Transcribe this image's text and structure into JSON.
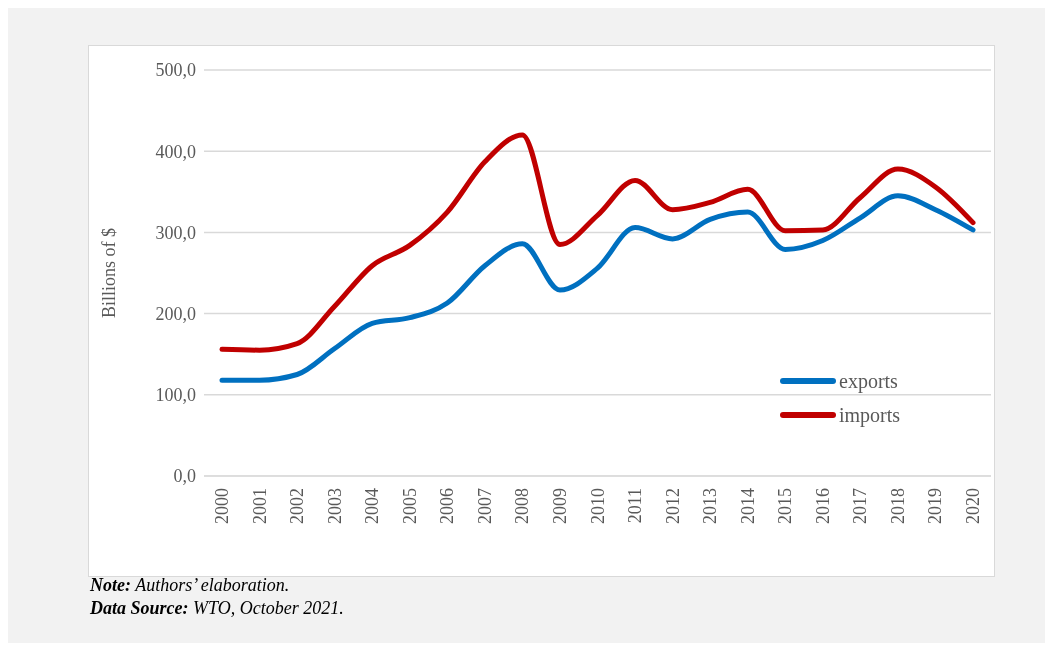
{
  "chart_data": {
    "type": "line",
    "ylabel": "Billions of $",
    "categories": [
      "2000",
      "2001",
      "2002",
      "2003",
      "2004",
      "2005",
      "2006",
      "2007",
      "2008",
      "2009",
      "2010",
      "2011",
      "2012",
      "2013",
      "2014",
      "2015",
      "2016",
      "2017",
      "2018",
      "2019",
      "2020"
    ],
    "series": [
      {
        "name": "exports",
        "color": "#0070c0",
        "values": [
          118,
          118,
          125,
          157,
          188,
          195,
          213,
          259,
          286,
          229,
          256,
          306,
          292,
          316,
          325,
          279,
          290,
          318,
          345,
          328,
          303
        ]
      },
      {
        "name": "imports",
        "color": "#c00000",
        "values": [
          156,
          155,
          163,
          209,
          259,
          284,
          325,
          387,
          420,
          285,
          321,
          364,
          328,
          337,
          353,
          302,
          303,
          343,
          378,
          356,
          312
        ]
      }
    ],
    "ylim": [
      0,
      500
    ],
    "yticks": [
      {
        "value": 0,
        "label": "0,0"
      },
      {
        "value": 100,
        "label": "100,0"
      },
      {
        "value": 200,
        "label": "200,0"
      },
      {
        "value": 300,
        "label": "300,0"
      },
      {
        "value": 400,
        "label": "400,0"
      },
      {
        "value": 500,
        "label": "500,0"
      }
    ],
    "grid": "y",
    "legend": "bottom right",
    "marker": "none",
    "line_style": "solid",
    "annotations": [
      "Note: Authors’ elaboration.",
      "Data Source: WTO, October 2021."
    ]
  }
}
